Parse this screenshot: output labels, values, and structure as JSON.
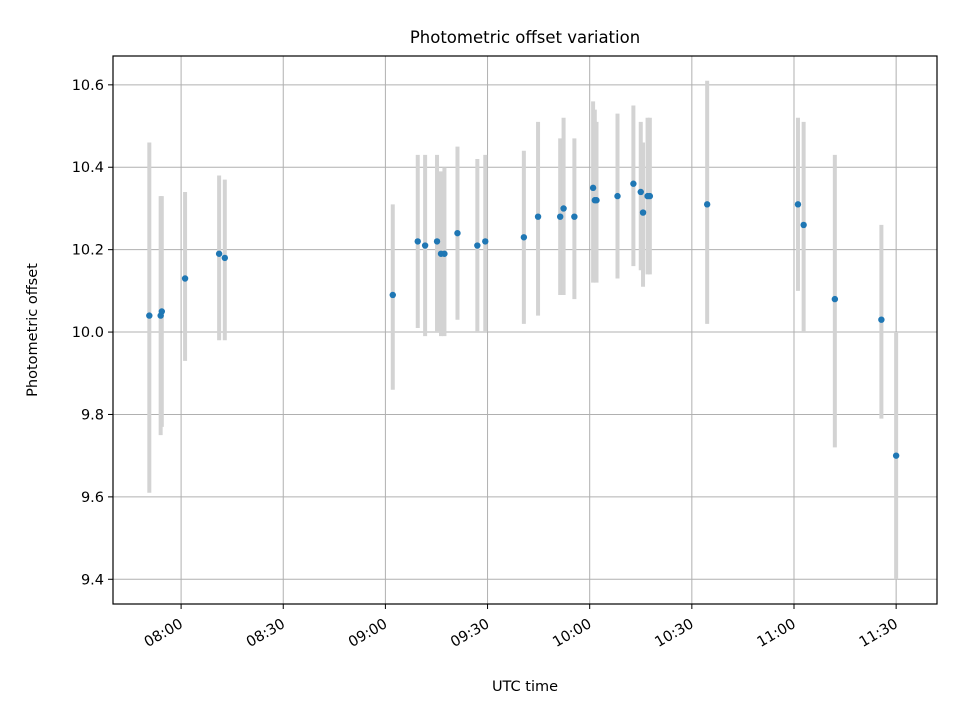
{
  "chart_data": {
    "type": "scatter",
    "title": "Photometric offset variation",
    "xlabel": "UTC time",
    "ylabel": "Photometric offset",
    "x_unit": "UTC time (HH:MM)",
    "xlim": [
      "07:40",
      "11:42"
    ],
    "ylim": [
      9.34,
      10.67
    ],
    "x_ticks": [
      "08:00",
      "08:30",
      "09:00",
      "09:30",
      "10:00",
      "10:30",
      "11:00",
      "11:30"
    ],
    "y_ticks": [
      "9.4",
      "9.6",
      "9.8",
      "10.0",
      "10.2",
      "10.4",
      "10.6"
    ],
    "grid": true,
    "colors": {
      "marker": "#1f77b4",
      "errorbar": "#d3d3d3",
      "grid": "#b0b0b0"
    },
    "series": [
      {
        "points": [
          {
            "x": "07:50:40",
            "y": 10.04,
            "ylow": 9.61,
            "yhigh": 10.46
          },
          {
            "x": "07:54:00",
            "y": 10.04,
            "ylow": 9.75,
            "yhigh": 10.33
          },
          {
            "x": "07:54:20",
            "y": 10.05,
            "ylow": 9.77,
            "yhigh": 10.33
          },
          {
            "x": "08:01:10",
            "y": 10.13,
            "ylow": 9.93,
            "yhigh": 10.34
          },
          {
            "x": "08:11:10",
            "y": 10.19,
            "ylow": 9.98,
            "yhigh": 10.38
          },
          {
            "x": "08:12:50",
            "y": 10.18,
            "ylow": 9.98,
            "yhigh": 10.37
          },
          {
            "x": "09:02:10",
            "y": 10.09,
            "ylow": 9.86,
            "yhigh": 10.31
          },
          {
            "x": "09:09:30",
            "y": 10.22,
            "ylow": 10.01,
            "yhigh": 10.43
          },
          {
            "x": "09:11:40",
            "y": 10.21,
            "ylow": 9.99,
            "yhigh": 10.43
          },
          {
            "x": "09:15:10",
            "y": 10.22,
            "ylow": 10.0,
            "yhigh": 10.43
          },
          {
            "x": "09:16:20",
            "y": 10.19,
            "ylow": 9.99,
            "yhigh": 10.39
          },
          {
            "x": "09:17:20",
            "y": 10.19,
            "ylow": 9.99,
            "yhigh": 10.4
          },
          {
            "x": "09:21:10",
            "y": 10.24,
            "ylow": 10.03,
            "yhigh": 10.45
          },
          {
            "x": "09:27:00",
            "y": 10.21,
            "ylow": 10.0,
            "yhigh": 10.42
          },
          {
            "x": "09:29:20",
            "y": 10.22,
            "ylow": 10.0,
            "yhigh": 10.43
          },
          {
            "x": "09:40:40",
            "y": 10.23,
            "ylow": 10.02,
            "yhigh": 10.44
          },
          {
            "x": "09:44:50",
            "y": 10.28,
            "ylow": 10.04,
            "yhigh": 10.51
          },
          {
            "x": "09:51:20",
            "y": 10.28,
            "ylow": 10.09,
            "yhigh": 10.47
          },
          {
            "x": "09:52:20",
            "y": 10.3,
            "ylow": 10.09,
            "yhigh": 10.52
          },
          {
            "x": "09:55:30",
            "y": 10.28,
            "ylow": 10.08,
            "yhigh": 10.47
          },
          {
            "x": "10:01:00",
            "y": 10.35,
            "ylow": 10.12,
            "yhigh": 10.56
          },
          {
            "x": "10:01:30",
            "y": 10.32,
            "ylow": 10.13,
            "yhigh": 10.54
          },
          {
            "x": "10:02:00",
            "y": 10.32,
            "ylow": 10.12,
            "yhigh": 10.51
          },
          {
            "x": "10:08:10",
            "y": 10.33,
            "ylow": 10.13,
            "yhigh": 10.53
          },
          {
            "x": "10:12:50",
            "y": 10.36,
            "ylow": 10.16,
            "yhigh": 10.55
          },
          {
            "x": "10:15:00",
            "y": 10.34,
            "ylow": 10.15,
            "yhigh": 10.51
          },
          {
            "x": "10:15:40",
            "y": 10.29,
            "ylow": 10.11,
            "yhigh": 10.46
          },
          {
            "x": "10:17:00",
            "y": 10.33,
            "ylow": 10.14,
            "yhigh": 10.52
          },
          {
            "x": "10:17:40",
            "y": 10.33,
            "ylow": 10.14,
            "yhigh": 10.52
          },
          {
            "x": "10:34:30",
            "y": 10.31,
            "ylow": 10.02,
            "yhigh": 10.61
          },
          {
            "x": "11:01:10",
            "y": 10.31,
            "ylow": 10.1,
            "yhigh": 10.52
          },
          {
            "x": "11:02:50",
            "y": 10.26,
            "ylow": 10.0,
            "yhigh": 10.51
          },
          {
            "x": "11:12:00",
            "y": 10.08,
            "ylow": 9.72,
            "yhigh": 10.43
          },
          {
            "x": "11:25:40",
            "y": 10.03,
            "ylow": 9.79,
            "yhigh": 10.26
          },
          {
            "x": "11:30:00",
            "y": 9.7,
            "ylow": 9.4,
            "yhigh": 10.0
          }
        ]
      }
    ]
  }
}
